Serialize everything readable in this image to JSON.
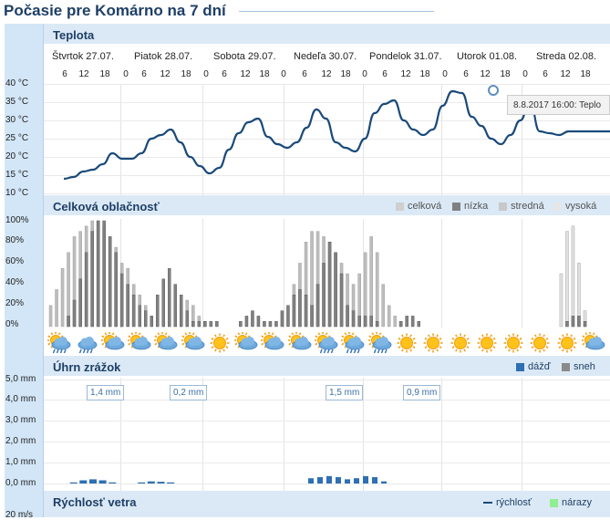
{
  "page": {
    "title": "Počasie pre Komárno na 7 dní"
  },
  "colors": {
    "temp_line": "#1a4a7a",
    "cloud_total": "#cfcfcf",
    "cloud_low": "#808080",
    "cloud_mid": "#b5b5b5",
    "cloud_high": "#e6e6e6",
    "rain": "#2f6fb3",
    "snow": "#8a8a8a",
    "gust": "#90ee90",
    "section_head": "#dbe9f6"
  },
  "days": [
    "Štvrtok 27.07.",
    "Piatok 28.07.",
    "Sobota 29.07.",
    "Nedeľa 30.07.",
    "Pondelok 31.07.",
    "Utorok 01.08.",
    "Streda 02.08."
  ],
  "hour_ticks": [
    "6",
    "12",
    "18",
    "0",
    "6",
    "12",
    "18",
    "0",
    "6",
    "12",
    "18",
    "0",
    "6",
    "12",
    "18",
    "0",
    "6",
    "12",
    "18",
    "0",
    "6",
    "12",
    "18",
    "0",
    "6",
    "12",
    "18"
  ],
  "temperature": {
    "label": "Teplota",
    "y_ticks": [
      "40 °C",
      "35 °C",
      "30 °C",
      "25 °C",
      "20 °C",
      "15 °C",
      "10 °C"
    ],
    "tooltip": "8.8.2017 16:00: Teplo"
  },
  "clouds": {
    "label": "Celková oblačnosť",
    "legend": [
      "celková",
      "nízka",
      "stredná",
      "vysoká"
    ],
    "y_ticks": [
      "100%",
      "80%",
      "60%",
      "40%",
      "20%",
      "0%"
    ]
  },
  "weather_icons": [
    "rain-cloud-sun-icon",
    "rain-cloud-icon",
    "cloud-sun-icon",
    "cloud-sun-icon",
    "sun-cloud-icon",
    "sun-cloud-icon",
    "sun-icon",
    "cloud-sun-icon",
    "sun-cloud-icon",
    "cloud-sun-icon",
    "rain-cloud-sun-icon",
    "rain-cloud-sun-icon",
    "rain-cloud-sun-icon",
    "sun-icon",
    "sun-icon",
    "sun-icon",
    "sun-icon",
    "sun-icon",
    "sun-icon",
    "sun-icon",
    "sun-cloud-icon",
    "sun-icon"
  ],
  "precipitation": {
    "label": "Úhrn zrážok",
    "legend": [
      "dážď",
      "sneh"
    ],
    "y_ticks": [
      "5,0 mm",
      "4,0 mm",
      "3,0 mm",
      "2,0 mm",
      "1,0 mm",
      "0,0 mm"
    ],
    "daily_totals": [
      "1,4 mm",
      "0,2 mm",
      "1,5 mm",
      "0,9 mm"
    ]
  },
  "wind": {
    "label": "Rýchlosť vetra",
    "legend": [
      "rýchlosť",
      "nárazy"
    ],
    "y_ticks": [
      "20 m/s"
    ]
  },
  "chart_data": [
    {
      "type": "line",
      "title": "Teplota",
      "ylabel": "°C",
      "ylim": [
        10,
        40
      ],
      "x_hours": [
        0,
        3,
        6,
        9,
        12,
        15,
        18,
        21,
        24,
        27,
        30,
        33,
        36,
        39,
        42,
        45,
        48,
        51,
        54,
        57,
        60,
        63,
        66,
        69,
        72,
        75,
        78,
        81,
        84,
        87,
        90,
        93,
        96,
        99,
        102,
        105,
        108,
        111,
        114,
        117,
        120,
        123,
        126,
        129,
        132,
        135,
        138,
        141,
        144,
        147,
        150,
        153,
        156,
        159,
        162,
        165,
        168,
        171,
        174
      ],
      "values": [
        14,
        14.5,
        16,
        16.5,
        18,
        21,
        19.5,
        19.5,
        21,
        25,
        26,
        27.5,
        24,
        20,
        17.5,
        15.5,
        17,
        22,
        26.5,
        29.5,
        30.5,
        25.5,
        23.5,
        22.5,
        24,
        28,
        33,
        30.5,
        24,
        22.5,
        21.5,
        25,
        32,
        34.5,
        35.5,
        30,
        27.5,
        26,
        27.5,
        34,
        38,
        37.5,
        31,
        28.5,
        25,
        23.5,
        26,
        30,
        35,
        27,
        26.5,
        26,
        27,
        27,
        27,
        27,
        27,
        27,
        27
      ]
    },
    {
      "type": "bar",
      "title": "Celková oblačnosť",
      "ylabel": "%",
      "ylim": [
        0,
        100
      ],
      "series": [
        {
          "name": "nízka",
          "values": [
            0,
            0,
            0,
            10,
            25,
            45,
            70,
            90,
            100,
            100,
            85,
            70,
            50,
            40,
            30,
            20,
            15,
            10,
            30,
            45,
            55,
            40,
            30,
            15,
            5,
            5,
            5,
            5,
            5,
            0,
            0,
            0,
            5,
            10,
            15,
            10,
            5,
            5,
            5,
            15,
            20,
            30,
            35,
            30,
            20,
            40,
            60,
            80,
            70,
            50,
            20,
            15,
            10,
            10,
            10,
            5,
            0,
            0,
            0,
            5,
            10,
            10,
            5,
            0,
            0,
            0,
            0,
            0,
            0,
            0,
            0,
            0,
            0,
            0,
            0,
            0,
            0,
            0,
            0,
            0,
            0,
            0,
            0,
            0,
            0,
            0,
            0,
            5,
            10,
            10,
            5,
            0,
            0,
            0
          ]
        },
        {
          "name": "stredná",
          "values": [
            20,
            35,
            55,
            70,
            85,
            90,
            95,
            100,
            100,
            95,
            85,
            75,
            60,
            55,
            40,
            30,
            20,
            10,
            5,
            5,
            5,
            10,
            20,
            25,
            20,
            10,
            5,
            0,
            0,
            0,
            0,
            0,
            0,
            0,
            0,
            0,
            0,
            0,
            0,
            0,
            0,
            40,
            60,
            80,
            90,
            90,
            85,
            80,
            70,
            60,
            50,
            40,
            50,
            70,
            85,
            70,
            40,
            20,
            10,
            5,
            0,
            0,
            0,
            0,
            0,
            0,
            0,
            0,
            0,
            0,
            0,
            0,
            0,
            0,
            0,
            0,
            0,
            0,
            0,
            0,
            0,
            0,
            0,
            0,
            0,
            0,
            0,
            0,
            0,
            0,
            0,
            0,
            0,
            0
          ]
        },
        {
          "name": "vysoká",
          "values": [
            0,
            0,
            0,
            0,
            0,
            0,
            0,
            0,
            0,
            0,
            0,
            0,
            0,
            0,
            0,
            0,
            0,
            0,
            0,
            0,
            0,
            0,
            0,
            0,
            0,
            0,
            0,
            0,
            0,
            0,
            0,
            0,
            0,
            0,
            0,
            0,
            0,
            0,
            0,
            0,
            0,
            0,
            0,
            0,
            0,
            0,
            0,
            0,
            0,
            0,
            0,
            0,
            0,
            0,
            0,
            0,
            0,
            0,
            0,
            0,
            0,
            0,
            0,
            0,
            0,
            0,
            0,
            0,
            0,
            0,
            0,
            0,
            0,
            0,
            0,
            0,
            0,
            0,
            0,
            0,
            0,
            0,
            0,
            0,
            0,
            0,
            50,
            90,
            95,
            60,
            15,
            0,
            0,
            0
          ]
        }
      ]
    },
    {
      "type": "area",
      "title": "Úhrn zrážok",
      "ylabel": "mm",
      "ylim": [
        0,
        5
      ],
      "x_hours": [
        0,
        3,
        6,
        9,
        12,
        15,
        18,
        21,
        24,
        27,
        30,
        33,
        36,
        39,
        42,
        45,
        48,
        51,
        54,
        57,
        60,
        63,
        66,
        69,
        72,
        75,
        78,
        81,
        84,
        87,
        90,
        93,
        96,
        99,
        102,
        105,
        108,
        111,
        114,
        117,
        120,
        123,
        126,
        129,
        132,
        135,
        138,
        141,
        144,
        147,
        150,
        153,
        156,
        159,
        162,
        165,
        168,
        171,
        174
      ],
      "series": [
        {
          "name": "dážď",
          "values": [
            0,
            0.05,
            0.15,
            0.2,
            0.15,
            0.05,
            0,
            0,
            0.05,
            0.1,
            0.08,
            0.05,
            0,
            0,
            0,
            0,
            0,
            0,
            0,
            0,
            0,
            0,
            0,
            0,
            0,
            0,
            0,
            0,
            0,
            0,
            0,
            0,
            0,
            0,
            0,
            0,
            0,
            0,
            0,
            0,
            0,
            0,
            0,
            0,
            0,
            0,
            0,
            0,
            0,
            0,
            0,
            0,
            0,
            0,
            0,
            0,
            0,
            0,
            0
          ]
        },
        {
          "name": "sneh",
          "values": [
            0,
            0,
            0,
            0,
            0,
            0,
            0,
            0,
            0,
            0,
            0,
            0,
            0,
            0,
            0,
            0,
            0,
            0,
            0,
            0,
            0,
            0,
            0,
            0,
            0,
            0,
            0,
            0,
            0,
            0,
            0,
            0,
            0,
            0,
            0,
            0,
            0,
            0,
            0,
            0,
            0,
            0,
            0,
            0,
            0,
            0,
            0,
            0,
            0,
            0,
            0,
            0,
            0,
            0,
            0,
            0,
            0,
            0,
            0
          ]
        }
      ]
    }
  ]
}
